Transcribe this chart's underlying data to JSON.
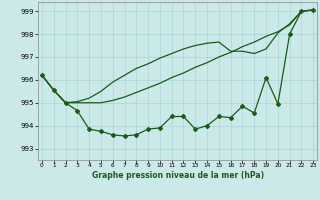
{
  "title": "Graphe pression niveau de la mer (hPa)",
  "background_color": "#cce9e9",
  "grid_color": "#aad4d4",
  "line_color": "#1a5c1a",
  "xlim": [
    -0.3,
    23.3
  ],
  "ylim": [
    992.5,
    999.4
  ],
  "yticks": [
    993,
    994,
    995,
    996,
    997,
    998,
    999
  ],
  "xticks": [
    0,
    1,
    2,
    3,
    4,
    5,
    6,
    7,
    8,
    9,
    10,
    11,
    12,
    13,
    14,
    15,
    16,
    17,
    18,
    19,
    20,
    21,
    22,
    23
  ],
  "line_markers": [
    996.2,
    995.55,
    995.0,
    994.65,
    993.85,
    993.75,
    993.6,
    993.55,
    993.6,
    993.85,
    993.9,
    994.4,
    994.4,
    993.85,
    994.0,
    994.4,
    994.35,
    994.85,
    994.55,
    996.1,
    994.95,
    998.0,
    999.0,
    999.05
  ],
  "line_smooth1": [
    996.2,
    995.55,
    995.0,
    995.0,
    995.0,
    995.0,
    995.1,
    995.25,
    995.45,
    995.65,
    995.85,
    996.1,
    996.3,
    996.55,
    996.75,
    997.0,
    997.2,
    997.45,
    997.65,
    997.9,
    998.1,
    998.4,
    999.0,
    999.05
  ],
  "line_smooth2": [
    996.2,
    995.55,
    995.0,
    995.05,
    995.2,
    995.5,
    995.9,
    996.2,
    996.5,
    996.7,
    996.95,
    997.15,
    997.35,
    997.5,
    997.6,
    997.65,
    997.25,
    997.25,
    997.15,
    997.35,
    998.05,
    998.45,
    999.0,
    999.05
  ]
}
